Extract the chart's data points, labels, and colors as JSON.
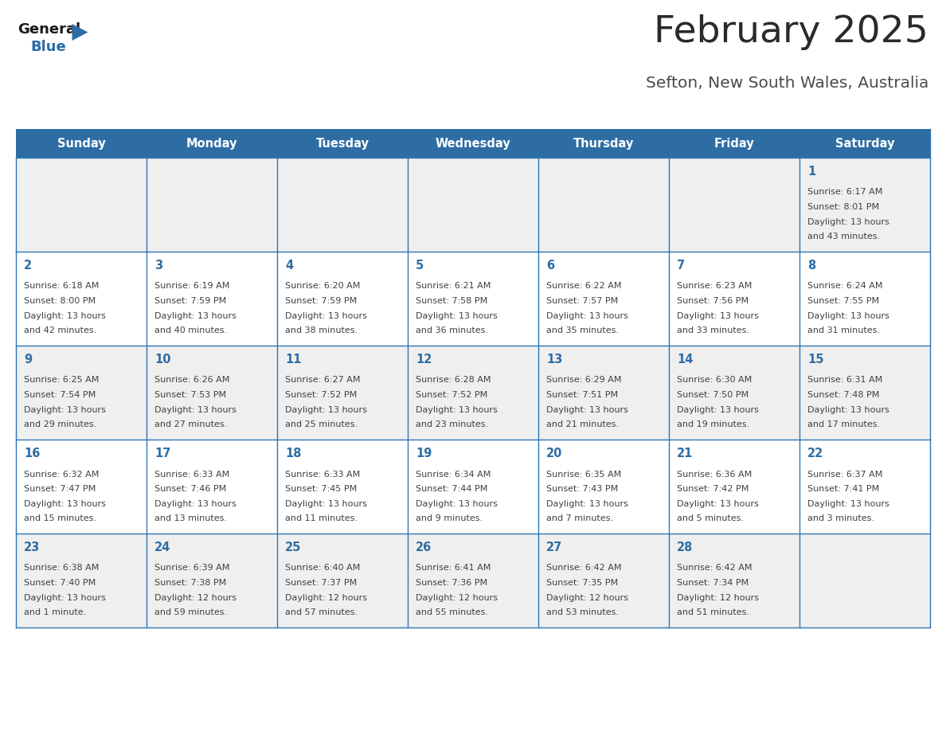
{
  "title": "February 2025",
  "subtitle": "Sefton, New South Wales, Australia",
  "header_bg": "#2E6DA4",
  "header_text_color": "#FFFFFF",
  "day_names": [
    "Sunday",
    "Monday",
    "Tuesday",
    "Wednesday",
    "Thursday",
    "Friday",
    "Saturday"
  ],
  "cell_border_color": "#2E75B6",
  "date_color": "#2E6DA4",
  "info_color": "#404040",
  "logo_general_color": "#1a1a1a",
  "logo_blue_color": "#2E6DA4",
  "row_backgrounds": [
    "#EFEFEF",
    "#FFFFFF",
    "#EFEFEF",
    "#FFFFFF",
    "#EFEFEF"
  ],
  "calendar_data": [
    [
      null,
      null,
      null,
      null,
      null,
      null,
      {
        "day": "1",
        "sunrise": "6:17 AM",
        "sunset": "8:01 PM",
        "daylight_line1": "Daylight: 13 hours",
        "daylight_line2": "and 43 minutes."
      }
    ],
    [
      {
        "day": "2",
        "sunrise": "6:18 AM",
        "sunset": "8:00 PM",
        "daylight_line1": "Daylight: 13 hours",
        "daylight_line2": "and 42 minutes."
      },
      {
        "day": "3",
        "sunrise": "6:19 AM",
        "sunset": "7:59 PM",
        "daylight_line1": "Daylight: 13 hours",
        "daylight_line2": "and 40 minutes."
      },
      {
        "day": "4",
        "sunrise": "6:20 AM",
        "sunset": "7:59 PM",
        "daylight_line1": "Daylight: 13 hours",
        "daylight_line2": "and 38 minutes."
      },
      {
        "day": "5",
        "sunrise": "6:21 AM",
        "sunset": "7:58 PM",
        "daylight_line1": "Daylight: 13 hours",
        "daylight_line2": "and 36 minutes."
      },
      {
        "day": "6",
        "sunrise": "6:22 AM",
        "sunset": "7:57 PM",
        "daylight_line1": "Daylight: 13 hours",
        "daylight_line2": "and 35 minutes."
      },
      {
        "day": "7",
        "sunrise": "6:23 AM",
        "sunset": "7:56 PM",
        "daylight_line1": "Daylight: 13 hours",
        "daylight_line2": "and 33 minutes."
      },
      {
        "day": "8",
        "sunrise": "6:24 AM",
        "sunset": "7:55 PM",
        "daylight_line1": "Daylight: 13 hours",
        "daylight_line2": "and 31 minutes."
      }
    ],
    [
      {
        "day": "9",
        "sunrise": "6:25 AM",
        "sunset": "7:54 PM",
        "daylight_line1": "Daylight: 13 hours",
        "daylight_line2": "and 29 minutes."
      },
      {
        "day": "10",
        "sunrise": "6:26 AM",
        "sunset": "7:53 PM",
        "daylight_line1": "Daylight: 13 hours",
        "daylight_line2": "and 27 minutes."
      },
      {
        "day": "11",
        "sunrise": "6:27 AM",
        "sunset": "7:52 PM",
        "daylight_line1": "Daylight: 13 hours",
        "daylight_line2": "and 25 minutes."
      },
      {
        "day": "12",
        "sunrise": "6:28 AM",
        "sunset": "7:52 PM",
        "daylight_line1": "Daylight: 13 hours",
        "daylight_line2": "and 23 minutes."
      },
      {
        "day": "13",
        "sunrise": "6:29 AM",
        "sunset": "7:51 PM",
        "daylight_line1": "Daylight: 13 hours",
        "daylight_line2": "and 21 minutes."
      },
      {
        "day": "14",
        "sunrise": "6:30 AM",
        "sunset": "7:50 PM",
        "daylight_line1": "Daylight: 13 hours",
        "daylight_line2": "and 19 minutes."
      },
      {
        "day": "15",
        "sunrise": "6:31 AM",
        "sunset": "7:48 PM",
        "daylight_line1": "Daylight: 13 hours",
        "daylight_line2": "and 17 minutes."
      }
    ],
    [
      {
        "day": "16",
        "sunrise": "6:32 AM",
        "sunset": "7:47 PM",
        "daylight_line1": "Daylight: 13 hours",
        "daylight_line2": "and 15 minutes."
      },
      {
        "day": "17",
        "sunrise": "6:33 AM",
        "sunset": "7:46 PM",
        "daylight_line1": "Daylight: 13 hours",
        "daylight_line2": "and 13 minutes."
      },
      {
        "day": "18",
        "sunrise": "6:33 AM",
        "sunset": "7:45 PM",
        "daylight_line1": "Daylight: 13 hours",
        "daylight_line2": "and 11 minutes."
      },
      {
        "day": "19",
        "sunrise": "6:34 AM",
        "sunset": "7:44 PM",
        "daylight_line1": "Daylight: 13 hours",
        "daylight_line2": "and 9 minutes."
      },
      {
        "day": "20",
        "sunrise": "6:35 AM",
        "sunset": "7:43 PM",
        "daylight_line1": "Daylight: 13 hours",
        "daylight_line2": "and 7 minutes."
      },
      {
        "day": "21",
        "sunrise": "6:36 AM",
        "sunset": "7:42 PM",
        "daylight_line1": "Daylight: 13 hours",
        "daylight_line2": "and 5 minutes."
      },
      {
        "day": "22",
        "sunrise": "6:37 AM",
        "sunset": "7:41 PM",
        "daylight_line1": "Daylight: 13 hours",
        "daylight_line2": "and 3 minutes."
      }
    ],
    [
      {
        "day": "23",
        "sunrise": "6:38 AM",
        "sunset": "7:40 PM",
        "daylight_line1": "Daylight: 13 hours",
        "daylight_line2": "and 1 minute."
      },
      {
        "day": "24",
        "sunrise": "6:39 AM",
        "sunset": "7:38 PM",
        "daylight_line1": "Daylight: 12 hours",
        "daylight_line2": "and 59 minutes."
      },
      {
        "day": "25",
        "sunrise": "6:40 AM",
        "sunset": "7:37 PM",
        "daylight_line1": "Daylight: 12 hours",
        "daylight_line2": "and 57 minutes."
      },
      {
        "day": "26",
        "sunrise": "6:41 AM",
        "sunset": "7:36 PM",
        "daylight_line1": "Daylight: 12 hours",
        "daylight_line2": "and 55 minutes."
      },
      {
        "day": "27",
        "sunrise": "6:42 AM",
        "sunset": "7:35 PM",
        "daylight_line1": "Daylight: 12 hours",
        "daylight_line2": "and 53 minutes."
      },
      {
        "day": "28",
        "sunrise": "6:42 AM",
        "sunset": "7:34 PM",
        "daylight_line1": "Daylight: 12 hours",
        "daylight_line2": "and 51 minutes."
      },
      null
    ]
  ]
}
